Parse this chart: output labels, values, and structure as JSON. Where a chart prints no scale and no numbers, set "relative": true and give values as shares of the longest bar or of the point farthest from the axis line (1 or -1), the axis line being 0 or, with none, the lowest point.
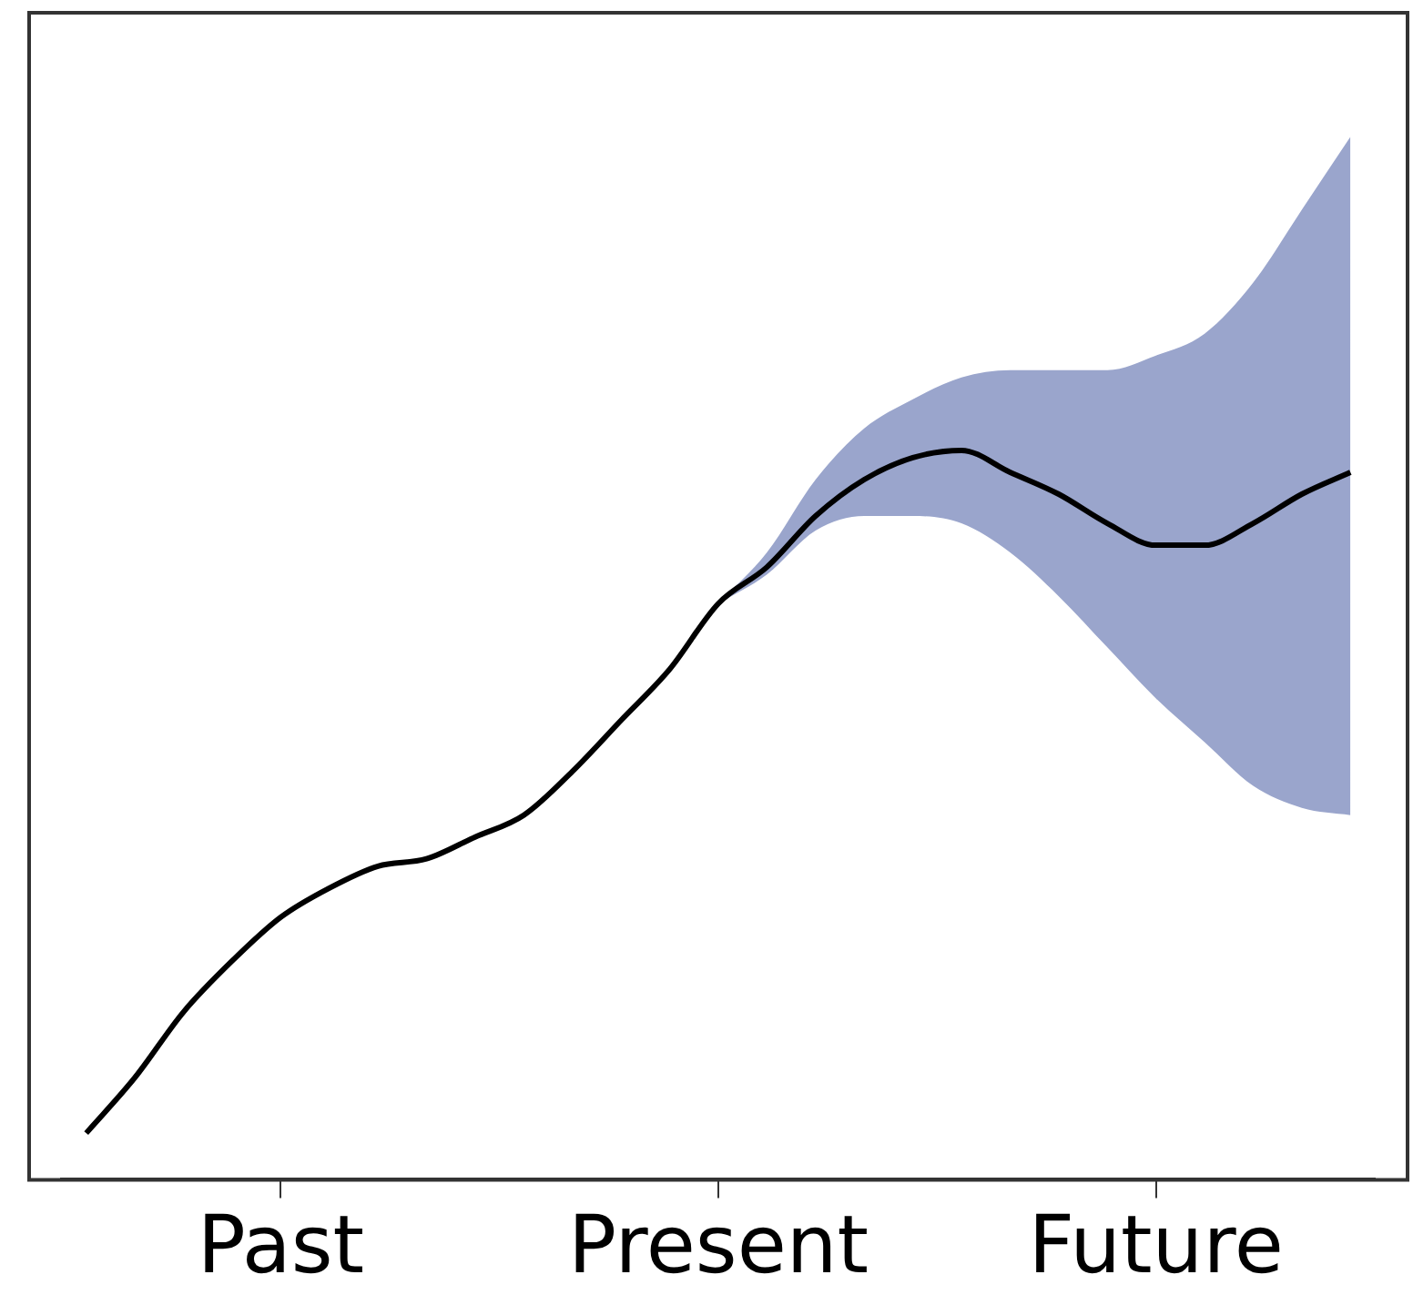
{
  "chart_data": {
    "type": "line",
    "relative": true,
    "grid": false,
    "tick_labels": "x",
    "marker": "none",
    "line_style": "solid",
    "categories": [
      null,
      null,
      null,
      null,
      "Past",
      null,
      null,
      null,
      null,
      null,
      null,
      null,
      null,
      "Present",
      null,
      null,
      null,
      null,
      null,
      null,
      null,
      null,
      "Future",
      null,
      null,
      null,
      null
    ],
    "series": [
      {
        "color": "#000000",
        "values": [
          0.064,
          0.14,
          0.23,
          0.3,
          0.36,
          0.4,
          0.43,
          0.44,
          0.47,
          0.5,
          0.56,
          0.63,
          0.7,
          0.79,
          0.84,
          0.91,
          0.96,
          0.99,
          1.0,
          0.97,
          0.94,
          0.9,
          0.87,
          0.87,
          0.9,
          0.94,
          0.97
        ],
        "lower": [
          null,
          null,
          null,
          null,
          null,
          null,
          null,
          null,
          null,
          null,
          null,
          null,
          null,
          0.79,
          0.83,
          0.89,
          0.91,
          0.91,
          0.9,
          0.86,
          0.8,
          0.73,
          0.66,
          0.6,
          0.54,
          0.51,
          0.5
        ],
        "upper": [
          null,
          null,
          null,
          null,
          null,
          null,
          null,
          null,
          null,
          null,
          null,
          null,
          null,
          0.79,
          0.86,
          0.96,
          1.03,
          1.07,
          1.1,
          1.11,
          1.11,
          1.11,
          1.13,
          1.16,
          1.23,
          1.33,
          1.43
        ]
      }
    ]
  }
}
